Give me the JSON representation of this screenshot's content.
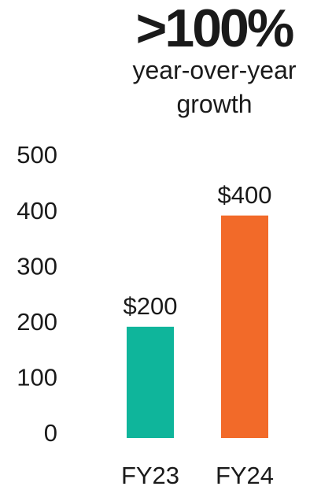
{
  "chart_data": {
    "type": "bar",
    "title": ">100%",
    "subtitle": "year-over-year growth",
    "categories": [
      "FY23",
      "FY24"
    ],
    "values": [
      200,
      400
    ],
    "value_labels": [
      "$200",
      "$400"
    ],
    "colors": [
      "#0fb59b",
      "#f26a29"
    ],
    "ylim": [
      0,
      500
    ],
    "yticks": [
      0,
      100,
      200,
      300,
      400,
      500
    ],
    "grid": false
  }
}
